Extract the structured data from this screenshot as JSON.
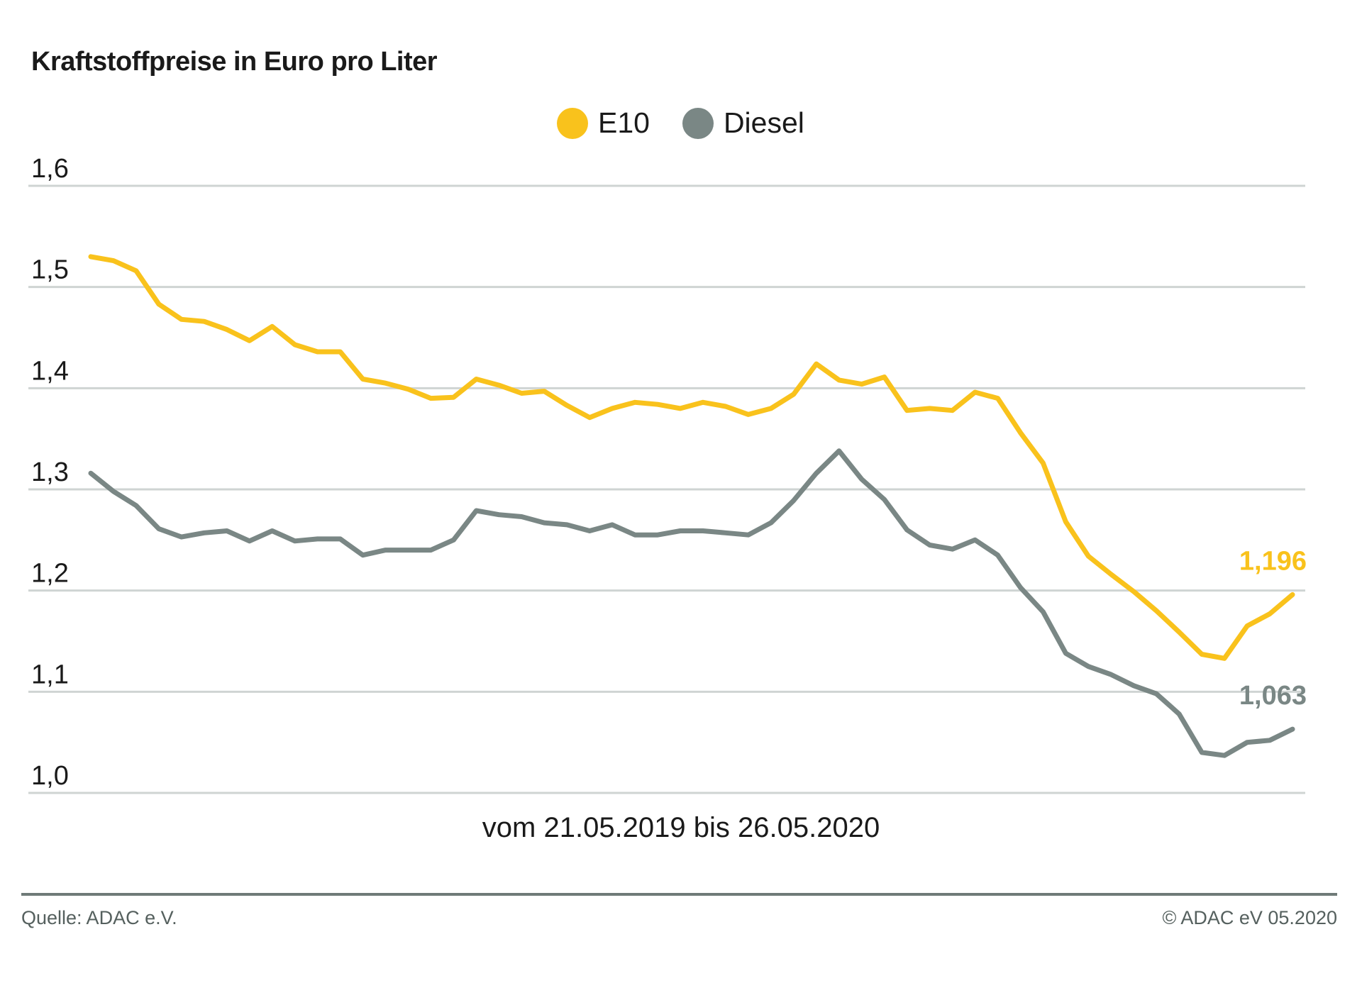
{
  "chart_data": {
    "type": "line",
    "title": "Kraftstoffpreise in Euro pro Liter",
    "x_caption": "vom 21.05.2019 bis 26.05.2020",
    "x_start": "21.05.2019",
    "x_end": "26.05.2020",
    "y_ticks": [
      "1,0",
      "1,1",
      "1,2",
      "1,3",
      "1,4",
      "1,5",
      "1,6"
    ],
    "y_tick_values": [
      1.0,
      1.1,
      1.2,
      1.3,
      1.4,
      1.5,
      1.6
    ],
    "ylim": [
      1.0,
      1.6
    ],
    "grid": true,
    "legend_position": "top-center",
    "series": [
      {
        "name": "E10",
        "color": "#f9c21c",
        "end_label": "1,196",
        "values": [
          1.53,
          1.526,
          1.516,
          1.483,
          1.468,
          1.466,
          1.458,
          1.447,
          1.461,
          1.443,
          1.436,
          1.436,
          1.409,
          1.405,
          1.399,
          1.39,
          1.391,
          1.409,
          1.403,
          1.395,
          1.397,
          1.383,
          1.371,
          1.38,
          1.386,
          1.384,
          1.38,
          1.386,
          1.382,
          1.374,
          1.38,
          1.394,
          1.424,
          1.408,
          1.404,
          1.411,
          1.378,
          1.38,
          1.378,
          1.396,
          1.39,
          1.356,
          1.326,
          1.268,
          1.234,
          1.216,
          1.199,
          1.18,
          1.159,
          1.137,
          1.133,
          1.165,
          1.177,
          1.196
        ]
      },
      {
        "name": "Diesel",
        "color": "#7a8785",
        "end_label": "1,063",
        "values": [
          1.316,
          1.298,
          1.284,
          1.261,
          1.253,
          1.257,
          1.259,
          1.249,
          1.259,
          1.249,
          1.251,
          1.251,
          1.235,
          1.24,
          1.24,
          1.24,
          1.25,
          1.279,
          1.275,
          1.273,
          1.267,
          1.265,
          1.259,
          1.265,
          1.255,
          1.255,
          1.259,
          1.259,
          1.257,
          1.255,
          1.267,
          1.289,
          1.316,
          1.338,
          1.31,
          1.29,
          1.26,
          1.245,
          1.241,
          1.25,
          1.235,
          1.203,
          1.179,
          1.138,
          1.125,
          1.117,
          1.106,
          1.098,
          1.078,
          1.04,
          1.037,
          1.05,
          1.052,
          1.063
        ]
      }
    ]
  },
  "footer": {
    "source": "Quelle: ADAC e.V.",
    "copyright": "© ADAC eV 05.2020"
  }
}
